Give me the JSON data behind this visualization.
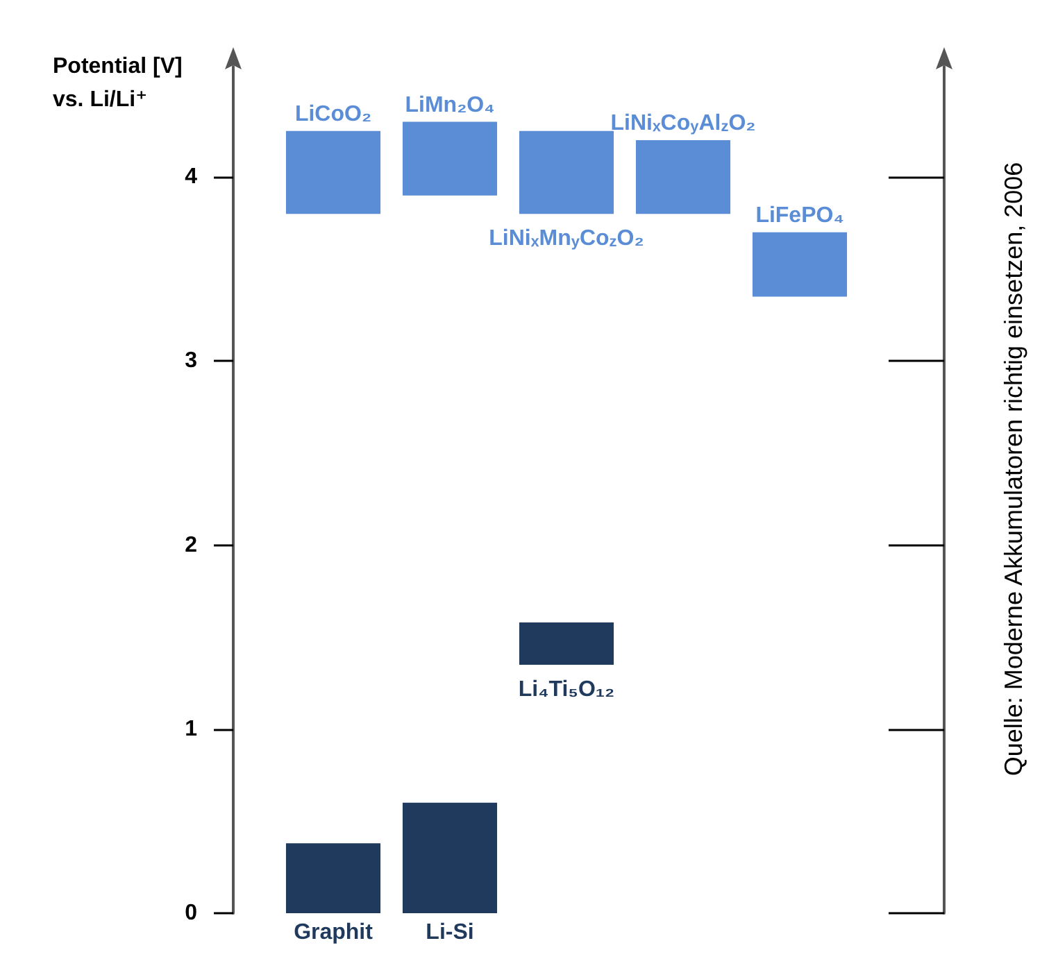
{
  "chart_data": {
    "type": "bar",
    "ylabel": "Potential [V]\nvs. Li/Li⁺",
    "categories": [
      "Graphit",
      "Li-Si",
      null,
      null,
      null
    ],
    "series": [
      {
        "color": "#5a8dd5",
        "values": [
          0.45,
          0.4,
          0.45,
          0.4,
          0.35
        ],
        "base": [
          3.8,
          3.9,
          3.8,
          3.8,
          3.35
        ],
        "value_labels": [
          "LiCoO₂",
          "LiMn₂O₄",
          "LiNiₓMn$_{y}$Co$_{z}$O₂",
          "LiNiₓCo$_{y}$Al$_{z}$O₂",
          "LiFePO₄"
        ]
      },
      {
        "color": "#1f3a5c",
        "values": [
          0.38,
          0.6,
          0.23,
          null,
          null
        ],
        "base": [
          0,
          0,
          1.35,
          null,
          null
        ],
        "value_labels": [
          null,
          null,
          "Li₄Ti₅O₁₂",
          null,
          null
        ]
      }
    ],
    "ylim": [
      0,
      4.6
    ],
    "yticks": [
      0,
      1,
      2,
      3,
      4
    ],
    "annotations": [
      "Quelle: Moderne Akkumulatoren richtig einsetzen, 2006"
    ]
  }
}
